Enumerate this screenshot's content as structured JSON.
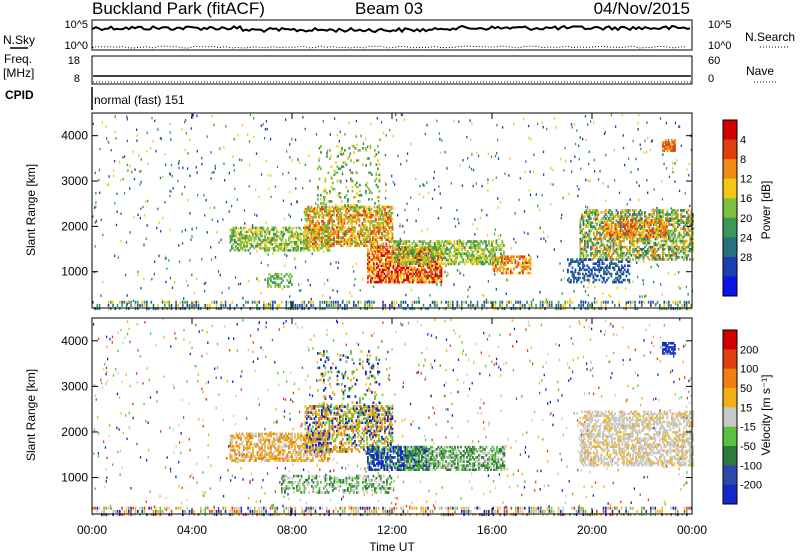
{
  "header": {
    "site": "Buckland Park (fitACF)",
    "beam": "Beam 03",
    "date": "04/Nov/2015"
  },
  "strip_panels": {
    "nsky_label": "N.Sky",
    "nsearch_label": "N.Search",
    "noise_ticks": [
      "10^5",
      "10^0"
    ],
    "freq_label": "Freq.",
    "freq_unit": "[MHz]",
    "freq_ticks": [
      "18",
      "8"
    ],
    "nave_label": "Nave",
    "nave_ticks": [
      "60",
      "0"
    ],
    "cpid_label": "CPID",
    "cpid_text": "normal (fast) 151"
  },
  "chart_data": [
    {
      "type": "heatmap",
      "name": "power",
      "ylabel": "Slant Range [km]",
      "yticks": [
        1000,
        2000,
        3000,
        4000
      ],
      "ylim": [
        200,
        4500
      ],
      "xlim": [
        0,
        24
      ],
      "colorbar": {
        "label": "Power [dB]",
        "ticks": [
          "4",
          "8",
          "12",
          "16",
          "20",
          "24",
          "28"
        ],
        "colors": [
          "#0a14e6",
          "#1a3fb0",
          "#2a6f80",
          "#3a9a55",
          "#7cc040",
          "#f2c814",
          "#f08a10",
          "#e04010",
          "#d00000"
        ]
      }
    },
    {
      "type": "heatmap",
      "name": "velocity",
      "ylabel": "Slant Range [km]",
      "yticks": [
        1000,
        2000,
        3000,
        4000
      ],
      "ylim": [
        200,
        4500
      ],
      "xlim": [
        0,
        24
      ],
      "xlabel": "Time UT",
      "xticks": [
        "00:00",
        "04:00",
        "08:00",
        "12:00",
        "16:00",
        "20:00",
        "00:00"
      ],
      "colorbar": {
        "label": "Velocity [m s⁻¹]",
        "ticks": [
          "200",
          "100",
          "50",
          "15",
          "-15",
          "-50",
          "-100",
          "-200"
        ],
        "colors": [
          "#1428c8",
          "#2a4aa8",
          "#2e7a3c",
          "#5cc040",
          "#c8c8c8",
          "#f2b014",
          "#f08010",
          "#e04010",
          "#d00000"
        ]
      }
    }
  ]
}
